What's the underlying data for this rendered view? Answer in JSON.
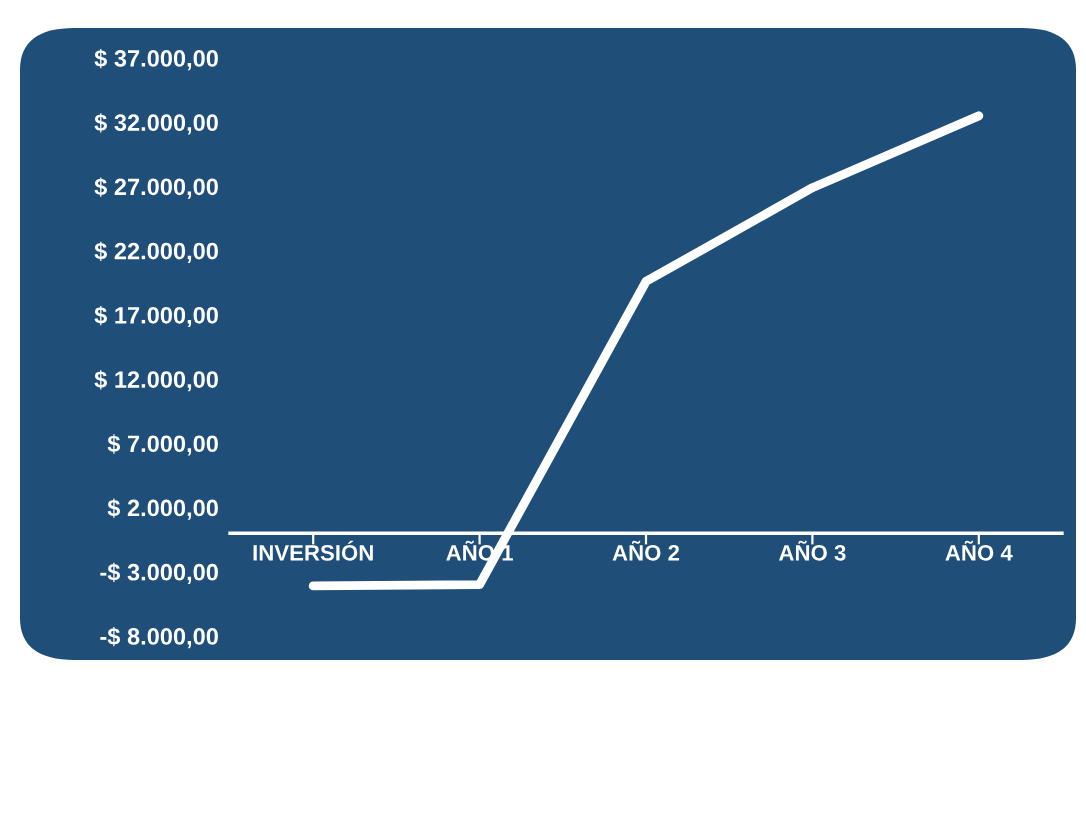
{
  "chart_data": {
    "type": "line",
    "categories": [
      "INVERSIÓN",
      "AÑO 1",
      "AÑO 2",
      "AÑO 3",
      "AÑO 4"
    ],
    "series": [
      {
        "color": "#ffffff",
        "values": [
          -4100,
          -4000,
          19600,
          26900,
          32500
        ]
      }
    ],
    "ylim": [
      -8000,
      37000
    ],
    "yticks": [
      {
        "value": -8000,
        "label": "-$ 8.000,00"
      },
      {
        "value": -3000,
        "label": "-$ 3.000,00"
      },
      {
        "value": 2000,
        "label": "$ 2.000,00"
      },
      {
        "value": 7000,
        "label": "$ 7.000,00"
      },
      {
        "value": 12000,
        "label": "$ 12.000,00"
      },
      {
        "value": 17000,
        "label": "$ 17.000,00"
      },
      {
        "value": 22000,
        "label": "$ 22.000,00"
      },
      {
        "value": 27000,
        "label": "$ 27.000,00"
      },
      {
        "value": 32000,
        "label": "$ 32.000,00"
      },
      {
        "value": 37000,
        "label": "$ 37.000,00"
      }
    ],
    "grid": false,
    "marker": "none",
    "line_style": "solid"
  }
}
